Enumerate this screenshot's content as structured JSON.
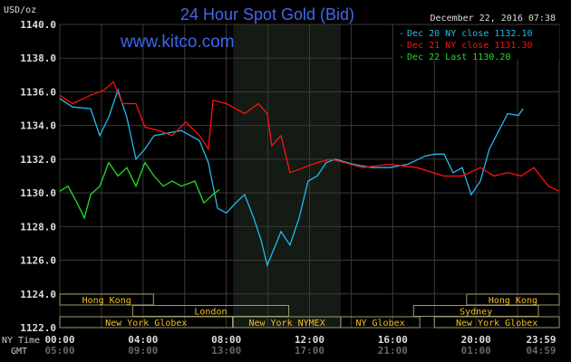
{
  "chart_data": {
    "type": "line",
    "title": "24 Hour Spot Gold (Bid)",
    "ylabel": "USD/oz",
    "watermark": "www.kitco.com",
    "timestamp": "December 22, 2016 07:38",
    "ylim": [
      1122,
      1140
    ],
    "xlim": [
      0,
      24
    ],
    "grid": true,
    "legend_position": "top-right",
    "y_ticks": [
      "1140.0",
      "1138.0",
      "1136.0",
      "1134.0",
      "1132.0",
      "1130.0",
      "1128.0",
      "1126.0",
      "1124.0",
      "1122.0"
    ],
    "x_axis_ny_label": "NY Time",
    "x_axis_gmt_label": "GMT",
    "x_ticks_ny": [
      "00:00",
      "04:00",
      "08:00",
      "12:00",
      "16:00",
      "20:00",
      "23:59"
    ],
    "x_ticks_gmt": [
      "05:00",
      "09:00",
      "13:00",
      "17:00",
      "21:00",
      "01:00",
      "04:59"
    ],
    "nymex_hours": [
      8.33,
      13.5
    ],
    "sessions": [
      {
        "name": "Hong Kong",
        "row": 0,
        "start": 0,
        "end": 4.5
      },
      {
        "name": "Hong Kong",
        "row": 0,
        "start": 19.55,
        "end": 24
      },
      {
        "name": "London",
        "row": 1,
        "start": 3.5,
        "end": 11.0
      },
      {
        "name": "Sydney",
        "row": 1,
        "start": 17.0,
        "end": 23.0
      },
      {
        "name": "New York Globex",
        "row": 2,
        "start": 0,
        "end": 8.3
      },
      {
        "name": "New York NYMEX",
        "row": 2,
        "start": 8.33,
        "end": 13.5
      },
      {
        "name": "NY Globex",
        "row": 2,
        "start": 13.5,
        "end": 17.3
      },
      {
        "name": "New York Globex",
        "row": 2,
        "start": 18.0,
        "end": 24
      }
    ],
    "series": [
      {
        "name": "Dec 20 NY close 1132.10",
        "color": "#22bbee",
        "x": [
          0,
          0.61,
          1.48,
          1.92,
          2.35,
          2.79,
          3.22,
          3.66,
          4.09,
          4.53,
          4.97,
          5.84,
          6.71,
          7.14,
          7.58,
          8.01,
          8.45,
          8.88,
          9.32,
          9.67,
          9.97,
          10.63,
          11.06,
          11.5,
          11.93,
          12.37,
          12.8,
          13.24,
          14.11,
          14.98,
          15.85,
          16.72,
          17.59,
          18.03,
          18.47,
          18.9,
          19.34,
          19.77,
          20.21,
          20.64,
          21.52,
          22.04,
          22.26
        ],
        "y": [
          1135.6,
          1135.1,
          1135.0,
          1133.4,
          1134.5,
          1136.1,
          1134.5,
          1132.0,
          1132.6,
          1133.4,
          1133.5,
          1133.7,
          1133.1,
          1131.8,
          1129.1,
          1128.8,
          1129.4,
          1129.9,
          1128.5,
          1127.2,
          1125.7,
          1127.7,
          1126.9,
          1128.5,
          1130.7,
          1131.0,
          1131.8,
          1132.0,
          1131.7,
          1131.5,
          1131.5,
          1131.7,
          1132.2,
          1132.3,
          1132.3,
          1131.2,
          1131.5,
          1129.9,
          1130.7,
          1132.6,
          1134.7,
          1134.6,
          1135.0
        ]
      },
      {
        "name": "Dec 21 NY close 1131.30",
        "color": "#ff1111",
        "x": [
          0,
          0.61,
          1.48,
          2.13,
          2.57,
          3.01,
          3.66,
          4.09,
          4.75,
          5.4,
          6.05,
          6.71,
          7.14,
          7.36,
          8.01,
          8.88,
          9.54,
          9.97,
          10.19,
          10.63,
          11.06,
          11.72,
          12.37,
          13.02,
          13.68,
          14.55,
          15.85,
          17.16,
          18.47,
          19.34,
          20.21,
          20.86,
          21.52,
          22.17,
          22.78,
          23.48,
          24
        ],
        "y": [
          1135.8,
          1135.3,
          1135.8,
          1136.1,
          1136.6,
          1135.3,
          1135.3,
          1133.9,
          1133.7,
          1133.4,
          1134.2,
          1133.4,
          1132.6,
          1135.5,
          1135.3,
          1134.7,
          1135.3,
          1134.7,
          1132.8,
          1133.4,
          1131.2,
          1131.5,
          1131.8,
          1132.0,
          1131.8,
          1131.5,
          1131.7,
          1131.5,
          1131.0,
          1131.0,
          1131.5,
          1131.0,
          1131.2,
          1131.0,
          1131.5,
          1130.4,
          1130.1
        ]
      },
      {
        "name": "Dec 22 Last 1130.20",
        "color": "#22dd22",
        "x": [
          0,
          0.39,
          0.83,
          1.18,
          1.48,
          1.92,
          2.35,
          2.79,
          3.22,
          3.66,
          4.09,
          4.53,
          4.97,
          5.4,
          5.84,
          6.49,
          6.92,
          7.36,
          7.67
        ],
        "y": [
          1130.1,
          1130.4,
          1129.4,
          1128.5,
          1129.9,
          1130.4,
          1131.8,
          1131.0,
          1131.5,
          1130.4,
          1131.8,
          1131.0,
          1130.4,
          1130.7,
          1130.4,
          1130.7,
          1129.4,
          1129.9,
          1130.2
        ]
      }
    ],
    "legend": [
      "Dec 20 NY close 1132.10",
      "Dec 21 NY close 1131.30",
      "Dec 22 Last 1130.20"
    ]
  }
}
